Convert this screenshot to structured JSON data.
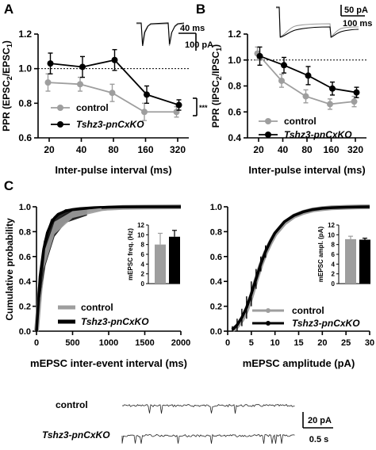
{
  "panel_labels": [
    "A",
    "B",
    "C"
  ],
  "chart_data": [
    {
      "type": "line",
      "panel": "A",
      "x": [
        20,
        40,
        80,
        160,
        320
      ],
      "xlabel": "Inter-pulse interval (ms)",
      "ylabel_main": "PPR (EPSC",
      "ylabel_sub": "2",
      "ylabel_mid": "/EPSC",
      "ylabel_sub2": "1",
      "ylabel_end": ")",
      "ylim": [
        0.6,
        1.2
      ],
      "yticks": [
        "0.6",
        "0.8",
        "1.0",
        "1.2"
      ],
      "xticks": [
        "20",
        "40",
        "80",
        "160",
        "320"
      ],
      "reference_line": 1.0,
      "series": [
        {
          "name": "control",
          "values": [
            0.92,
            0.91,
            0.86,
            0.75,
            0.75
          ],
          "err": [
            0.05,
            0.04,
            0.05,
            0.05,
            0.03
          ],
          "color": "#9e9e9e"
        },
        {
          "name": "Tshz3-pnCxKO",
          "values": [
            1.03,
            1.01,
            1.05,
            0.85,
            0.79
          ],
          "err": [
            0.06,
            0.06,
            0.06,
            0.05,
            0.03
          ],
          "color": "#000000"
        }
      ],
      "significance": "***",
      "scalebar_time": "40 ms",
      "scalebar_amp": "100 pA"
    },
    {
      "type": "line",
      "panel": "B",
      "x": [
        20,
        40,
        80,
        160,
        320
      ],
      "xlabel": "Inter-pulse interval (ms)",
      "ylabel_main": "PPR (IPSC",
      "ylabel_sub": "2",
      "ylabel_mid": "/IPSC",
      "ylabel_sub2": "1",
      "ylabel_end": ")",
      "ylim": [
        0.4,
        1.2
      ],
      "yticks": [
        "0.4",
        "0.6",
        "0.8",
        "1.0",
        "1.2"
      ],
      "xticks": [
        "20",
        "40",
        "80",
        "160",
        "320"
      ],
      "reference_line": 1.0,
      "series": [
        {
          "name": "control",
          "values": [
            1.05,
            0.84,
            0.72,
            0.66,
            0.68
          ],
          "err": [
            0.05,
            0.05,
            0.05,
            0.04,
            0.04
          ],
          "color": "#9e9e9e"
        },
        {
          "name": "Tshz3-pnCxKO",
          "values": [
            1.03,
            0.96,
            0.88,
            0.78,
            0.75
          ],
          "err": [
            0.07,
            0.06,
            0.07,
            0.05,
            0.04
          ],
          "color": "#000000"
        }
      ],
      "scalebar_amp": "50 pA",
      "scalebar_time": "100 ms"
    },
    {
      "type": "line",
      "panel": "C-left",
      "xlabel": "mEPSC inter-event interval (ms)",
      "ylabel": "Cumulative probability",
      "xlim": [
        0,
        2000
      ],
      "ylim": [
        0,
        1
      ],
      "xticks": [
        "0",
        "500",
        "1000",
        "1500",
        "2000"
      ],
      "yticks": [
        "0.0",
        "0.2",
        "0.4",
        "0.6",
        "0.8",
        "1.0"
      ],
      "series": [
        {
          "name": "control",
          "x": [
            0,
            50,
            100,
            150,
            200,
            250,
            300,
            400,
            500,
            600,
            800,
            1000,
            1200,
            1500,
            2000
          ],
          "values": [
            0,
            0.34,
            0.56,
            0.69,
            0.77,
            0.83,
            0.87,
            0.92,
            0.95,
            0.96,
            0.98,
            0.99,
            0.995,
            0.998,
            1.0
          ],
          "color": "#9e9e9e"
        },
        {
          "name": "Tshz3-pnCxKO",
          "x": [
            0,
            50,
            100,
            150,
            200,
            250,
            300,
            400,
            500,
            600,
            800,
            1000,
            1200,
            1500,
            2000
          ],
          "values": [
            0,
            0.44,
            0.66,
            0.79,
            0.86,
            0.91,
            0.94,
            0.965,
            0.978,
            0.985,
            0.993,
            0.997,
            0.999,
            1.0,
            1.0
          ],
          "color": "#000000"
        }
      ],
      "inset": {
        "type": "bar",
        "ylabel": "mEPSC freq. (Hz)",
        "ylim": [
          0,
          12
        ],
        "yticks": [
          "0",
          "2",
          "4",
          "6",
          "8",
          "10",
          "12"
        ],
        "categories": [
          "control",
          "Tshz3-pnCxKO"
        ],
        "values": [
          8.0,
          9.6
        ],
        "err": [
          2.3,
          1.3
        ],
        "colors": [
          "#9e9e9e",
          "#000000"
        ]
      }
    },
    {
      "type": "line",
      "panel": "C-right",
      "xlabel": "mEPSC amplitude (pA)",
      "xlim": [
        0,
        30
      ],
      "ylim": [
        0,
        1
      ],
      "xticks": [
        "0",
        "5",
        "10",
        "15",
        "20",
        "25",
        "30"
      ],
      "yticks": [
        "0.0",
        "0.2",
        "0.4",
        "0.6",
        "0.8",
        "1.0"
      ],
      "series": [
        {
          "name": "control",
          "x": [
            1,
            2,
            3,
            4,
            5,
            6,
            7,
            8,
            9,
            10,
            12,
            14,
            16,
            18,
            20,
            22,
            25,
            28,
            30
          ],
          "values": [
            0.01,
            0.04,
            0.09,
            0.17,
            0.28,
            0.41,
            0.53,
            0.63,
            0.71,
            0.78,
            0.87,
            0.925,
            0.955,
            0.975,
            0.985,
            0.992,
            0.996,
            0.999,
            1.0
          ],
          "color": "#9e9e9e"
        },
        {
          "name": "Tshz3-pnCxKO",
          "x": [
            1,
            2,
            3,
            4,
            5,
            6,
            7,
            8,
            9,
            10,
            12,
            14,
            16,
            18,
            20,
            22,
            25,
            28,
            30
          ],
          "values": [
            0.01,
            0.05,
            0.11,
            0.19,
            0.3,
            0.42,
            0.54,
            0.64,
            0.72,
            0.79,
            0.88,
            0.93,
            0.96,
            0.978,
            0.988,
            0.993,
            0.997,
            0.999,
            1.0
          ],
          "color": "#000000"
        }
      ],
      "inset": {
        "type": "bar",
        "ylabel": "mEPSC ampl. (pA)",
        "ylim": [
          0,
          12
        ],
        "yticks": [
          "0",
          "2",
          "4",
          "6",
          "8",
          "10",
          "12"
        ],
        "categories": [
          "control",
          "Tshz3-pnCxKO"
        ],
        "values": [
          9.1,
          9.0
        ],
        "err": [
          0.6,
          0.3
        ],
        "colors": [
          "#9e9e9e",
          "#000000"
        ]
      }
    }
  ],
  "traces": {
    "labels": [
      "control",
      "Tshz3-pnCxKO"
    ],
    "scalebar_amp": "20 pA",
    "scalebar_time": "0.5 s"
  }
}
